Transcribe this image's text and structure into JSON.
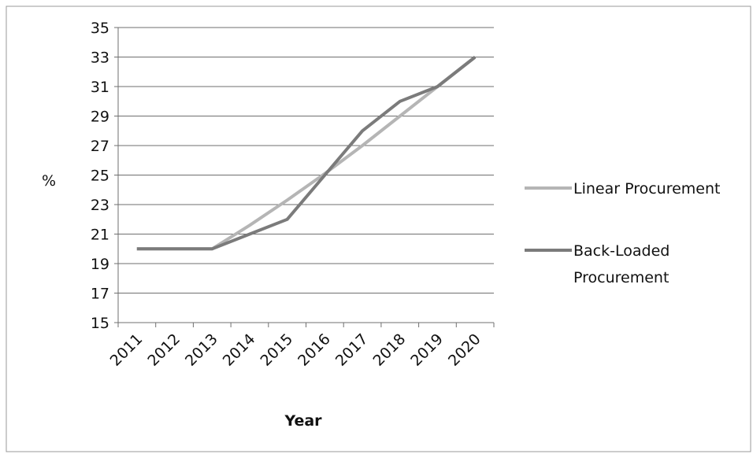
{
  "chart_data": {
    "type": "line",
    "title": "",
    "xlabel": "Year",
    "ylabel": "%",
    "x": [
      "2011",
      "2012",
      "2013",
      "2014",
      "2015",
      "2016",
      "2017",
      "2018",
      "2019",
      "2020"
    ],
    "yticks": [
      "15",
      "17",
      "19",
      "21",
      "23",
      "25",
      "27",
      "29",
      "31",
      "33",
      "35"
    ],
    "ylim": [
      15,
      35
    ],
    "grid": true,
    "legend_position": "right",
    "series": [
      {
        "name": "Linear Procurement",
        "name_lines": [
          "Linear Procurement"
        ],
        "color": "#b5b5b5",
        "values": [
          20,
          20,
          20,
          21.6,
          23.3,
          25.1,
          27,
          29,
          31,
          33
        ]
      },
      {
        "name": "Back-Loaded Procurement",
        "name_lines": [
          "Back-Loaded",
          "Procurement"
        ],
        "color": "#7b7b7b",
        "values": [
          20,
          20,
          20,
          21,
          22,
          25,
          28,
          30,
          31,
          33
        ]
      }
    ]
  }
}
